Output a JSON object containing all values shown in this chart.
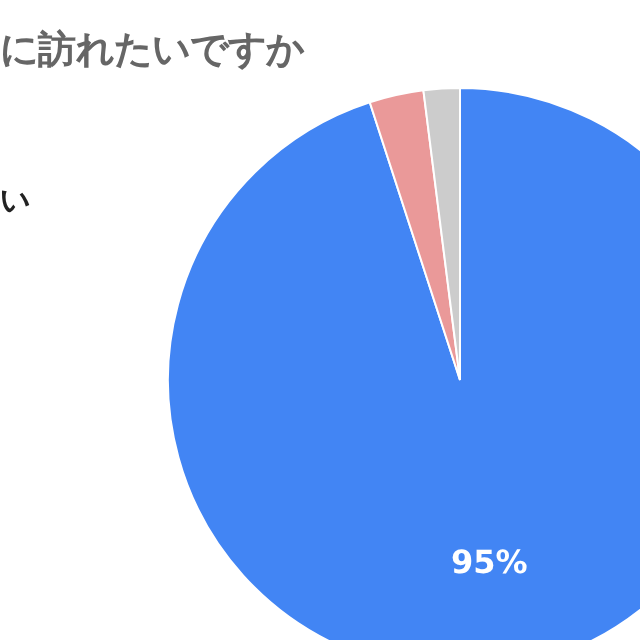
{
  "chart_data": {
    "type": "pie",
    "title": "に訪れたいですか",
    "categories": [
      null,
      null,
      null
    ],
    "values": [
      95,
      3,
      2
    ],
    "colors": [
      "#4285f4",
      "#ea9999",
      "#cccccc"
    ],
    "value_labels": [
      "95%",
      null,
      null
    ],
    "annotations": [
      "い"
    ]
  }
}
